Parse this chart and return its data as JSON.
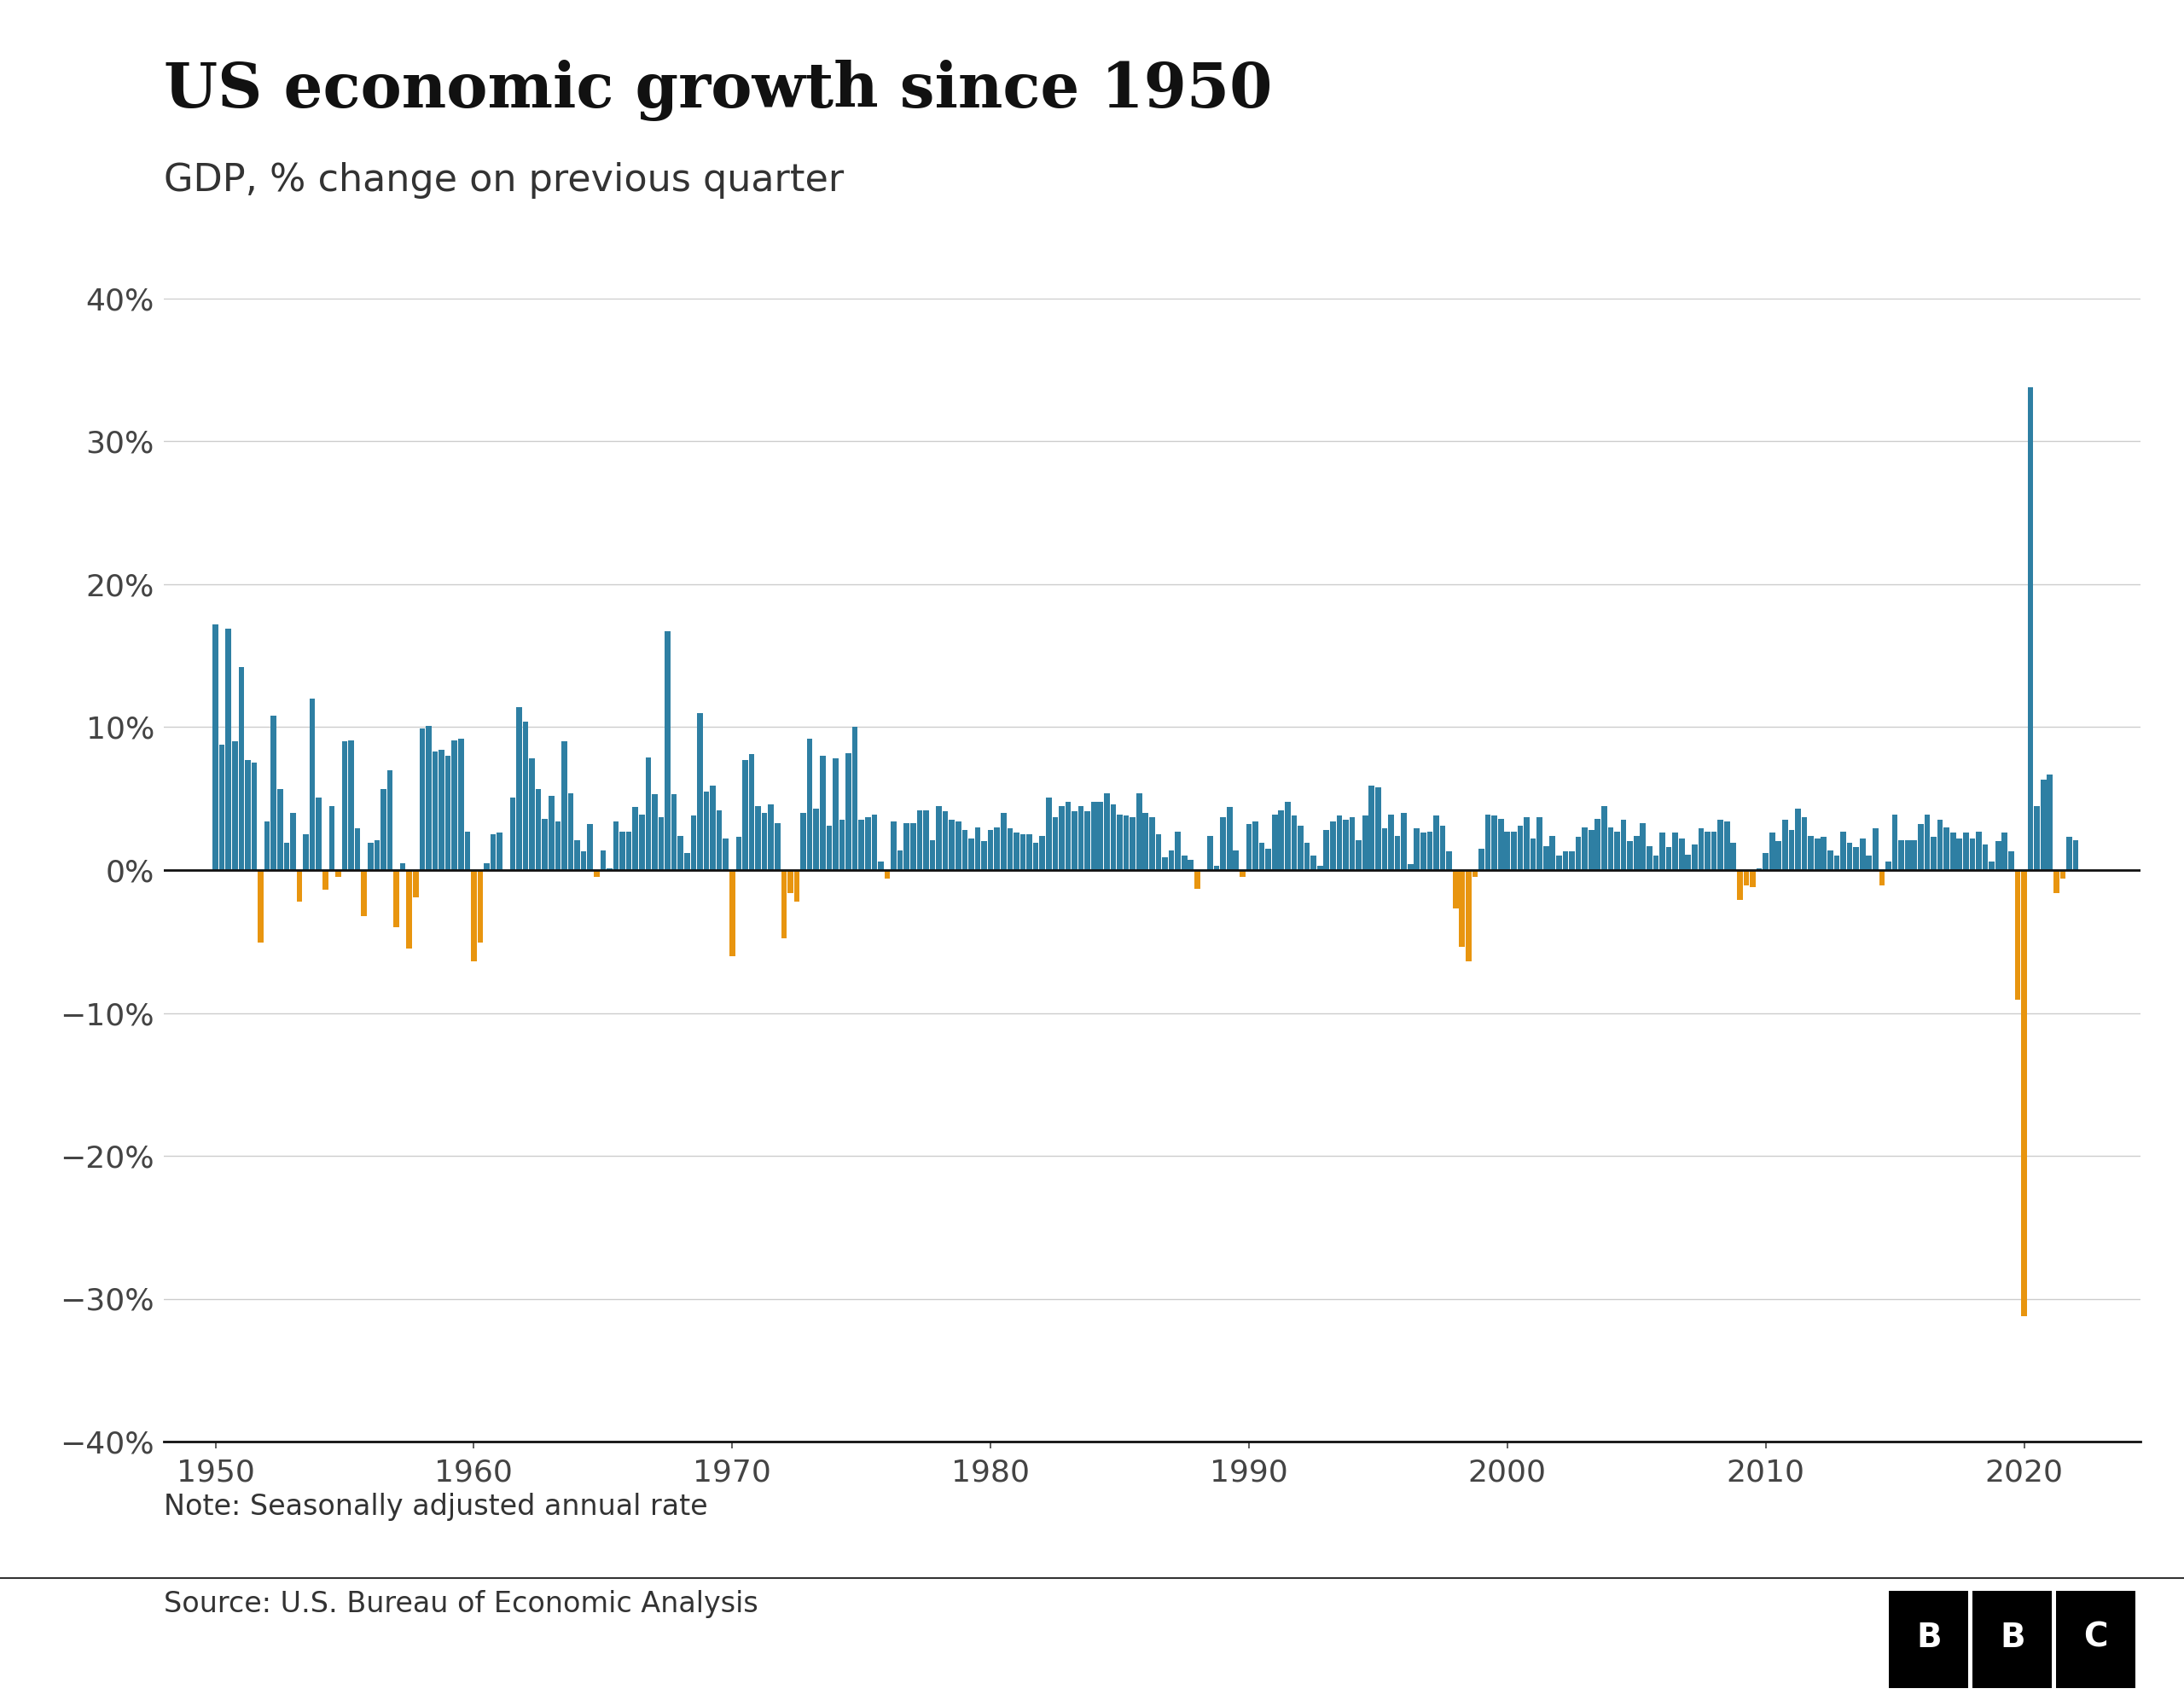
{
  "title": "US economic growth since 1950",
  "subtitle": "GDP, % change on previous quarter",
  "note": "Note: Seasonally adjusted annual rate",
  "source": "Source: U.S. Bureau of Economic Analysis",
  "ylim": [
    -40,
    40
  ],
  "yticks": [
    -40,
    -30,
    -20,
    -10,
    0,
    10,
    20,
    30,
    40
  ],
  "positive_color": "#2e7fa3",
  "negative_color": "#e8950f",
  "background_color": "#ffffff",
  "title_fontsize": 52,
  "subtitle_fontsize": 32,
  "note_fontsize": 24,
  "source_fontsize": 24,
  "tick_fontsize": 26,
  "values": [
    17.2,
    8.8,
    16.9,
    9.0,
    14.2,
    7.7,
    7.5,
    -5.1,
    3.4,
    10.8,
    5.7,
    1.9,
    4.0,
    -2.2,
    2.5,
    12.0,
    5.1,
    -1.4,
    4.5,
    -0.5,
    9.0,
    9.1,
    2.9,
    -3.2,
    1.9,
    2.1,
    5.7,
    7.0,
    -4.0,
    0.5,
    -5.5,
    -1.9,
    9.9,
    10.1,
    8.3,
    8.4,
    8.0,
    9.1,
    9.2,
    2.7,
    -6.4,
    -5.1,
    0.5,
    2.5,
    2.6,
    0.0,
    5.1,
    11.4,
    10.4,
    7.8,
    5.7,
    3.6,
    5.2,
    3.4,
    9.0,
    5.4,
    2.1,
    1.3,
    3.2,
    -0.5,
    1.4,
    0.1,
    3.4,
    2.7,
    2.7,
    4.4,
    3.9,
    7.9,
    5.3,
    3.7,
    16.7,
    5.3,
    2.4,
    1.2,
    3.8,
    11.0,
    5.5,
    5.9,
    4.2,
    2.2,
    -6.0,
    2.3,
    7.7,
    8.1,
    4.5,
    4.0,
    4.6,
    3.3,
    -4.8,
    -1.6,
    -2.2,
    4.0,
    9.2,
    4.3,
    8.0,
    3.1,
    7.8,
    3.5,
    8.2,
    10.0,
    3.5,
    3.7,
    3.9,
    0.6,
    -0.6,
    3.4,
    1.4,
    3.3,
    3.3,
    4.2,
    4.2,
    2.1,
    4.5,
    4.1,
    3.5,
    3.4,
    2.8,
    2.2,
    3.0,
    2.0,
    2.8,
    3.0,
    4.0,
    2.9,
    2.6,
    2.5,
    2.5,
    1.9,
    2.4,
    5.1,
    3.7,
    4.5,
    4.8,
    4.1,
    4.5,
    4.1,
    4.8,
    4.8,
    5.4,
    4.6,
    3.9,
    3.8,
    3.7,
    5.4,
    4.0,
    3.7,
    2.5,
    0.9,
    1.4,
    2.7,
    1.0,
    0.7,
    -1.3,
    0.0,
    2.4,
    0.3,
    3.7,
    4.4,
    1.4,
    -0.5,
    3.2,
    3.4,
    1.9,
    1.5,
    3.9,
    4.2,
    4.8,
    3.8,
    3.1,
    1.9,
    1.0,
    0.3,
    2.8,
    3.4,
    3.8,
    3.5,
    3.7,
    2.1,
    3.8,
    5.9,
    5.8,
    2.9,
    3.9,
    2.4,
    4.0,
    0.4,
    2.9,
    2.6,
    2.7,
    3.8,
    3.1,
    1.3,
    -2.7,
    -5.4,
    -6.4,
    -0.5,
    1.5,
    3.9,
    3.8,
    3.6,
    2.7,
    2.7,
    3.1,
    3.7,
    2.2,
    3.7,
    1.7,
    2.4,
    1.0,
    1.3,
    1.3,
    2.3,
    3.0,
    2.8,
    3.6,
    4.5,
    3.0,
    2.7,
    3.5,
    2.0,
    2.4,
    3.3,
    1.7,
    1.0,
    2.6,
    1.6,
    2.6,
    2.2,
    1.1,
    1.8,
    2.9,
    2.7,
    2.7,
    3.5,
    3.4,
    1.9,
    -2.1,
    -1.1,
    -1.2,
    0.1,
    1.2,
    2.6,
    2.0,
    3.5,
    2.8,
    4.3,
    3.7,
    2.4,
    2.2,
    2.3,
    1.4,
    1.0,
    2.7,
    1.9,
    1.6,
    2.2,
    1.0,
    2.9,
    -1.1,
    0.6,
    3.9,
    2.1,
    2.1,
    2.1,
    3.2,
    3.9,
    2.3,
    3.5,
    3.0,
    2.6,
    2.2,
    2.6,
    2.2,
    2.7,
    1.8,
    0.6,
    2.0,
    2.6,
    1.3,
    -9.1,
    -31.2,
    33.8,
    4.5,
    6.3,
    6.7,
    -1.6,
    -0.6,
    2.3,
    2.1
  ],
  "xtick_years": [
    1950,
    1960,
    1970,
    1980,
    1990,
    2000,
    2010,
    2020
  ],
  "xlim": [
    1948.0,
    2024.5
  ]
}
